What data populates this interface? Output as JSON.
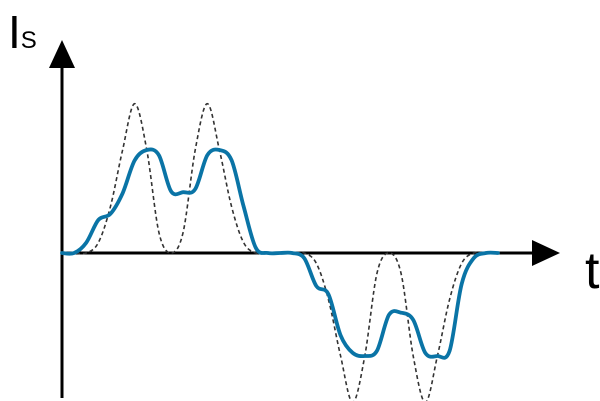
{
  "labels": {
    "y_axis": "I",
    "y_axis_subscript": "S",
    "x_axis": "t"
  },
  "colors": {
    "axis": "#000000",
    "actual_current": "#0a74a6",
    "reference_current": "#333333",
    "background": "#ffffff"
  },
  "chart_data": {
    "type": "line",
    "series": [
      {
        "values": [
          0,
          0,
          0.1,
          0.32,
          0.38,
          0.58,
          0.9,
          1.0,
          0.95,
          0.6,
          0.59,
          0.62,
          0.95,
          1.0,
          0.9,
          0.45,
          0.05,
          0,
          0,
          0,
          -0.05,
          -0.32,
          -0.4,
          -0.8,
          -0.97,
          -1.0,
          -0.95,
          -0.6,
          -0.58,
          -0.65,
          -0.97,
          -1.0,
          -0.95,
          -0.3,
          -0.05,
          0,
          0
        ]
      },
      {
        "values": [
          0,
          0,
          0,
          0.1,
          0.45,
          1.0,
          1.45,
          1.0,
          0.2,
          0,
          0.2,
          1.0,
          1.45,
          1.0,
          0.45,
          0.1,
          0,
          0,
          0,
          0,
          0,
          -0.1,
          -0.45,
          -1.0,
          -1.45,
          -1.0,
          -0.2,
          0,
          -0.2,
          -1.0,
          -1.45,
          -1.0,
          -0.45,
          -0.1,
          0,
          0,
          0
        ]
      }
    ]
  }
}
